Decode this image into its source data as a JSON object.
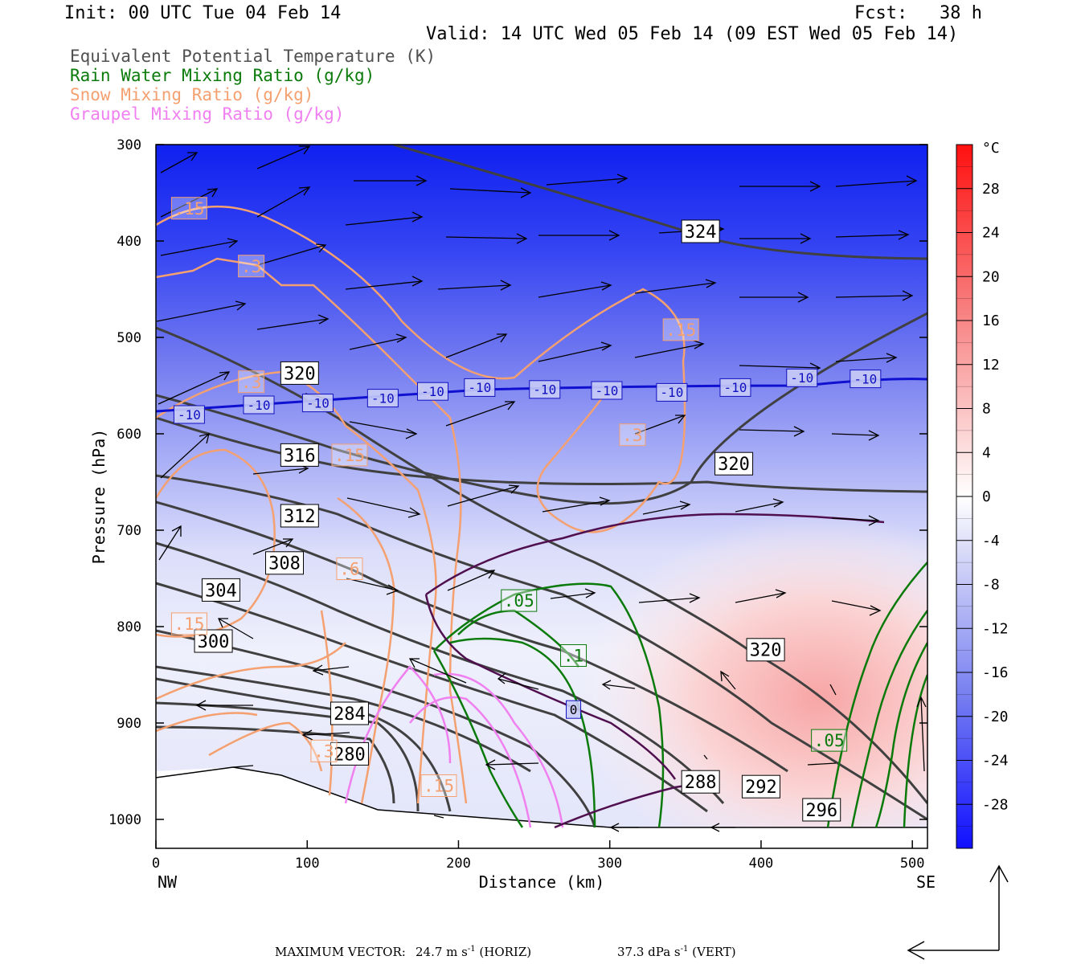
{
  "header": {
    "init": "Init: 00 UTC Tue 04 Feb 14",
    "fcst": "Fcst:   38 h",
    "valid": "Valid: 14 UTC Wed 05 Feb 14 (09 EST Wed 05 Feb 14)"
  },
  "legend": [
    {
      "label": "Equivalent Potential Temperature (K)",
      "color": "#505050"
    },
    {
      "label": "Rain Water Mixing Ratio (g/kg)",
      "color": "#0a7a0a"
    },
    {
      "label": "Snow Mixing Ratio (g/kg)",
      "color": "#f4a070"
    },
    {
      "label": "Graupel Mixing Ratio (g/kg)",
      "color": "#f080f0"
    }
  ],
  "footer": {
    "max_vector_label": "MAXIMUM VECTOR:",
    "horiz_value": "24.7 m s",
    "horiz_unit": "(HORIZ)",
    "vert_value": "37.3 dPa s",
    "vert_unit": "(VERT)",
    "exponent": "-1"
  },
  "chart_data": {
    "type": "contour",
    "xlabel": "Distance (km)",
    "ylabel": "Pressure (hPa)",
    "xlim": [
      0,
      510
    ],
    "ylim": [
      1030,
      300
    ],
    "x_ticks": [
      0,
      100,
      200,
      300,
      400,
      500
    ],
    "y_ticks": [
      300,
      400,
      500,
      600,
      700,
      800,
      900,
      1000
    ],
    "x_start_label": "NW",
    "x_end_label": "SE",
    "colorbar": {
      "unit": "°C",
      "ticks": [
        28,
        24,
        20,
        16,
        12,
        8,
        4,
        0,
        -4,
        -8,
        -12,
        -16,
        -20,
        -24,
        -28
      ]
    },
    "theta_e_labels": [
      {
        "text": "324",
        "x": 360,
        "p": 390
      },
      {
        "text": "320",
        "x": 95,
        "p": 537
      },
      {
        "text": "320",
        "x": 382,
        "p": 631
      },
      {
        "text": "320",
        "x": 403,
        "p": 824
      },
      {
        "text": "316",
        "x": 95,
        "p": 622
      },
      {
        "text": "312",
        "x": 95,
        "p": 685
      },
      {
        "text": "308",
        "x": 85,
        "p": 734
      },
      {
        "text": "304",
        "x": 43,
        "p": 762
      },
      {
        "text": "300",
        "x": 38,
        "p": 815
      },
      {
        "text": "284",
        "x": 128,
        "p": 890
      },
      {
        "text": "280",
        "x": 128,
        "p": 932
      },
      {
        "text": "288",
        "x": 360,
        "p": 961
      },
      {
        "text": "292",
        "x": 400,
        "p": 966
      },
      {
        "text": "296",
        "x": 440,
        "p": 990
      }
    ],
    "temp_labels": [
      {
        "text": "-10",
        "x": 22,
        "p": 580
      },
      {
        "text": "-10",
        "x": 68,
        "p": 570
      },
      {
        "text": "-10",
        "x": 107,
        "p": 568
      },
      {
        "text": "-10",
        "x": 150,
        "p": 563
      },
      {
        "text": "-10",
        "x": 183,
        "p": 556
      },
      {
        "text": "-10",
        "x": 214,
        "p": 552
      },
      {
        "text": "-10",
        "x": 257,
        "p": 554
      },
      {
        "text": "-10",
        "x": 298,
        "p": 555
      },
      {
        "text": "-10",
        "x": 341,
        "p": 557
      },
      {
        "text": "-10",
        "x": 383,
        "p": 552
      },
      {
        "text": "-10",
        "x": 427,
        "p": 542
      },
      {
        "text": "-10",
        "x": 469,
        "p": 543
      },
      {
        "text": "0",
        "x": 276,
        "p": 886
      }
    ],
    "snow_labels": [
      {
        "text": ".15",
        "x": 22,
        "p": 366
      },
      {
        "text": ".3",
        "x": 63,
        "p": 426
      },
      {
        "text": ".15",
        "x": 347,
        "p": 492
      },
      {
        "text": ".3",
        "x": 63,
        "p": 546
      },
      {
        "text": ".3",
        "x": 315,
        "p": 601
      },
      {
        "text": ".15",
        "x": 128,
        "p": 622
      },
      {
        "text": ".6",
        "x": 128,
        "p": 740
      },
      {
        "text": ".15",
        "x": 22,
        "p": 797
      },
      {
        "text": ".15",
        "x": 187,
        "p": 965
      },
      {
        "text": ".3",
        "x": 111,
        "p": 929
      }
    ],
    "rain_labels": [
      {
        "text": ".05",
        "x": 240,
        "p": 773
      },
      {
        "text": ".1",
        "x": 276,
        "p": 830
      },
      {
        "text": ".05",
        "x": 445,
        "p": 918
      }
    ]
  }
}
